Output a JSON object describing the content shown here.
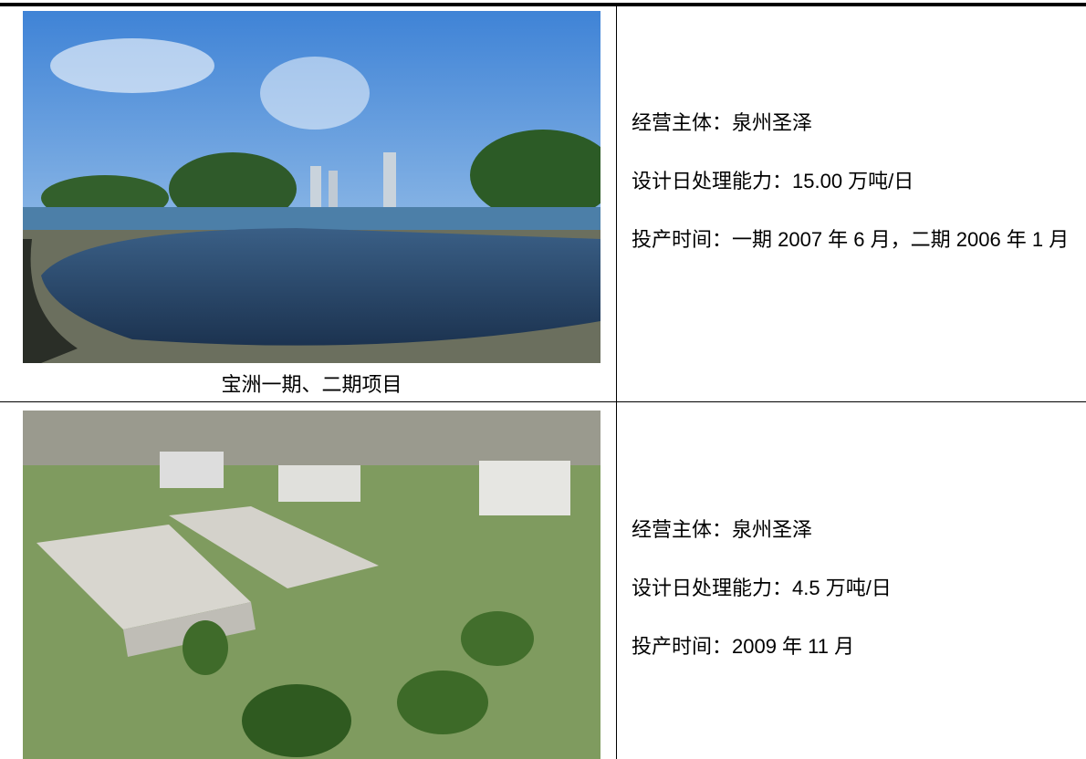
{
  "table": {
    "rows": [
      {
        "caption": "宝洲一期、二期项目",
        "lines": [
          "经营主体：泉州圣泽",
          "设计日处理能力：15.00 万吨/日",
          "投产时间：一期 2007 年 6 月，二期 2006 年 1 月"
        ]
      },
      {
        "lines": [
          "经营主体：泉州圣泽",
          "设计日处理能力：4.5 万吨/日",
          "投产时间：2009 年 11 月"
        ]
      }
    ]
  }
}
